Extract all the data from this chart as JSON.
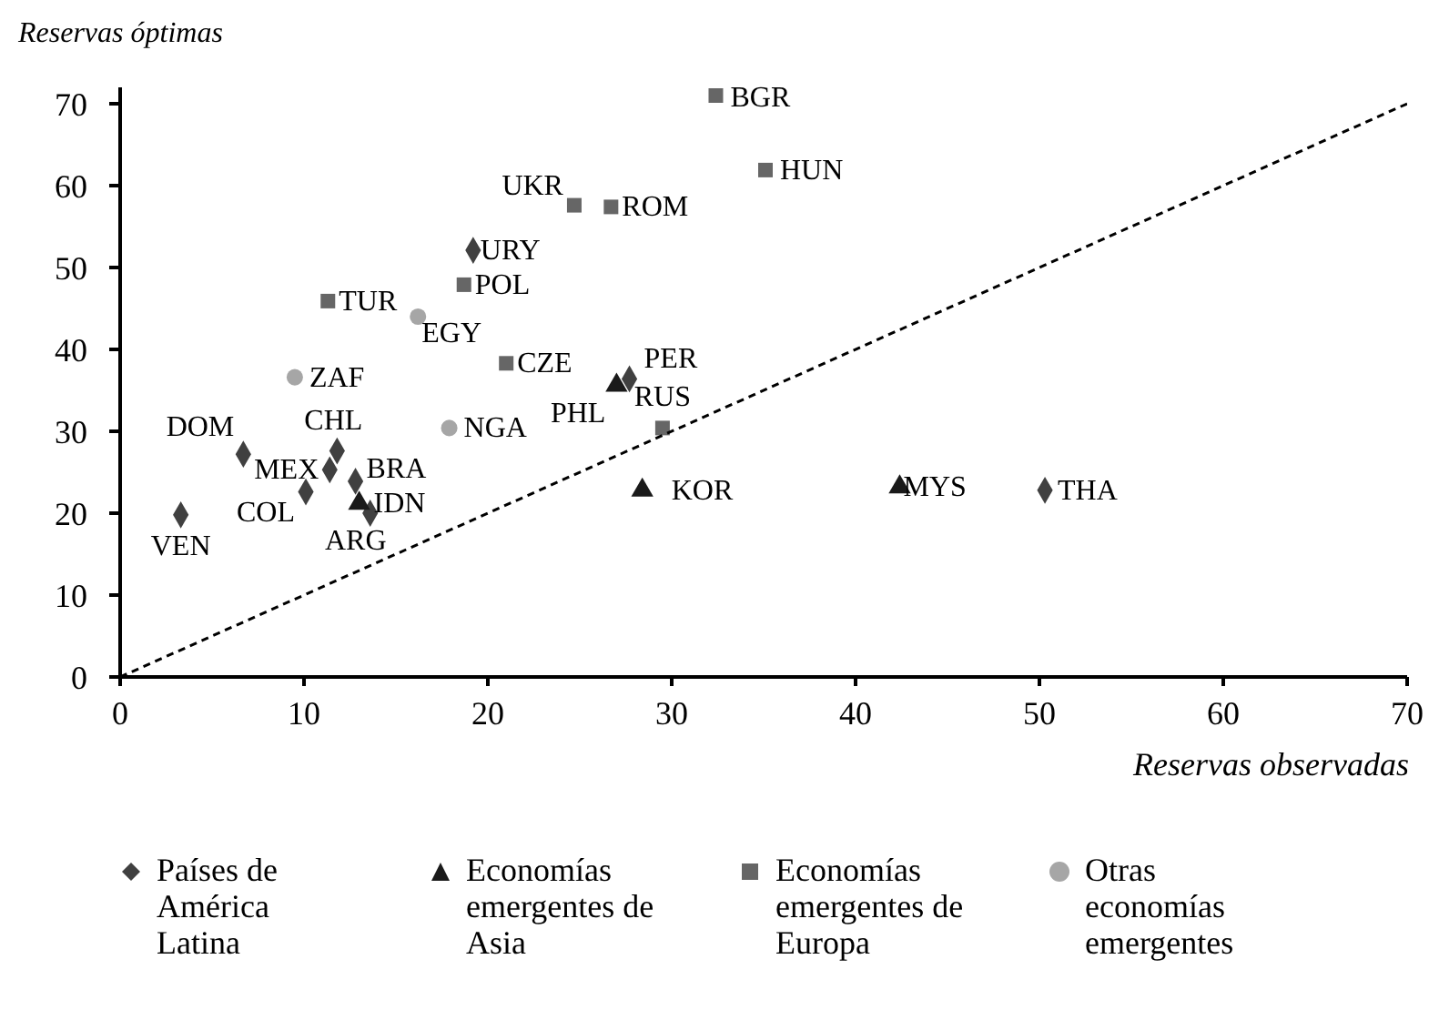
{
  "chart_data": {
    "type": "scatter",
    "xlabel": "Reservas observadas",
    "ylabel": "Reservas óptimas",
    "xlim": [
      0,
      70
    ],
    "ylim": [
      0,
      72
    ],
    "xticks": [
      0,
      10,
      20,
      30,
      40,
      50,
      60,
      70
    ],
    "yticks": [
      0,
      10,
      20,
      30,
      40,
      50,
      60,
      70
    ],
    "legend": "bottom",
    "series": [
      {
        "name": "Países de América Latina",
        "color": "#404040",
        "marker": "diamond",
        "x": [
          3.3,
          6.7,
          11.4,
          11.8,
          10.1,
          12.8,
          13.6,
          19.2,
          27.7,
          50.3
        ],
        "values": [
          19.8,
          27.2,
          25.3,
          27.6,
          22.6,
          23.9,
          20.0,
          52.1,
          36.4,
          22.8
        ]
      },
      {
        "name": "Economías emergentes de Asia",
        "color": "#1a1a1a",
        "marker": "triangle",
        "x": [
          13.0,
          27.0,
          28.4,
          42.4
        ],
        "values": [
          21.2,
          35.6,
          22.8,
          23.2
        ]
      },
      {
        "name": "Economías emergentes de Europa",
        "color": "#666666",
        "marker": "square",
        "x": [
          32.4,
          35.1,
          24.7,
          26.7,
          18.7,
          11.3,
          21.0,
          29.5
        ],
        "values": [
          71.0,
          61.9,
          57.6,
          57.4,
          47.9,
          45.9,
          38.3,
          30.4
        ]
      },
      {
        "name": "Otras economías emergentes",
        "color": "#a6a6a6",
        "marker": "circle",
        "x": [
          16.2,
          9.5,
          17.9
        ],
        "values": [
          44.0,
          36.6,
          30.4
        ]
      },
      {
        "type": "line",
        "color": "#000000",
        "line_style": "dashed",
        "marker": "none",
        "x": [
          0,
          70
        ],
        "values": [
          0,
          70
        ]
      }
    ],
    "annotations": [
      {
        "text": "VEN",
        "x": 3.3,
        "y": 19.8
      },
      {
        "text": "DOM",
        "x": 6.7,
        "y": 27.2
      },
      {
        "text": "MEX",
        "x": 11.4,
        "y": 25.3
      },
      {
        "text": "CHL",
        "x": 11.8,
        "y": 27.6
      },
      {
        "text": "COL",
        "x": 10.1,
        "y": 22.6
      },
      {
        "text": "BRA",
        "x": 12.8,
        "y": 23.9
      },
      {
        "text": "ARG",
        "x": 13.6,
        "y": 20.0
      },
      {
        "text": "URY",
        "x": 19.2,
        "y": 52.1
      },
      {
        "text": "PER",
        "x": 27.7,
        "y": 36.4
      },
      {
        "text": "THA",
        "x": 50.3,
        "y": 22.8
      },
      {
        "text": "IDN",
        "x": 13.0,
        "y": 21.2
      },
      {
        "text": "PHL",
        "x": 27.0,
        "y": 35.6
      },
      {
        "text": "KOR",
        "x": 28.4,
        "y": 22.8
      },
      {
        "text": "MYS",
        "x": 42.4,
        "y": 23.2
      },
      {
        "text": "BGR",
        "x": 32.4,
        "y": 71.0
      },
      {
        "text": "HUN",
        "x": 35.1,
        "y": 61.9
      },
      {
        "text": "UKR",
        "x": 24.7,
        "y": 57.6
      },
      {
        "text": "ROM",
        "x": 26.7,
        "y": 57.4
      },
      {
        "text": "POL",
        "x": 18.7,
        "y": 47.9
      },
      {
        "text": "TUR",
        "x": 11.3,
        "y": 45.9
      },
      {
        "text": "CZE",
        "x": 21.0,
        "y": 38.3
      },
      {
        "text": "RUS",
        "x": 29.5,
        "y": 30.4
      },
      {
        "text": "EGY",
        "x": 16.2,
        "y": 44.0
      },
      {
        "text": "ZAF",
        "x": 9.5,
        "y": 36.6
      },
      {
        "text": "NGA",
        "x": 17.9,
        "y": 30.4
      }
    ]
  }
}
